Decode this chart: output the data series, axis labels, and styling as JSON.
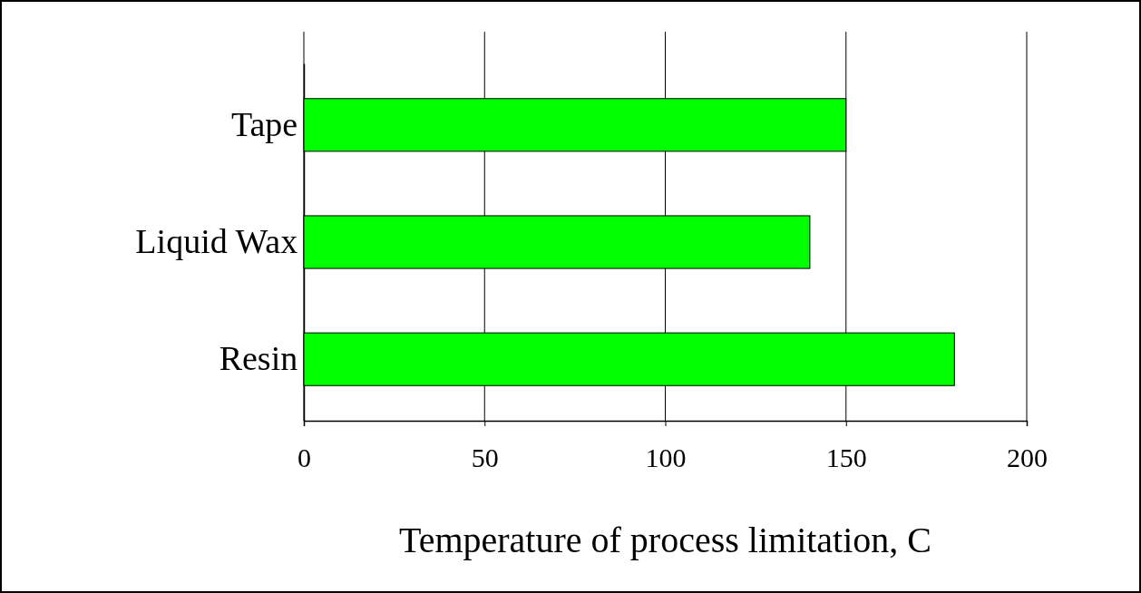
{
  "chart_data": {
    "type": "bar",
    "orientation": "horizontal",
    "categories": [
      "Tape",
      "Liquid Wax",
      "Resin"
    ],
    "values": [
      150,
      140,
      180
    ],
    "color": "#00ff00",
    "xlim": [
      0,
      200
    ],
    "xticks": [
      0,
      50,
      100,
      150,
      200
    ],
    "xlabel": "Temperature of process limitation, C",
    "grid": "x"
  }
}
